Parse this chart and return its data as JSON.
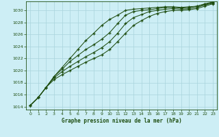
{
  "title": "Graphe pression niveau de la mer (hPa)",
  "background_color": "#cdeef5",
  "grid_color": "#a8d4dc",
  "line_color": "#1e4d10",
  "xlim": [
    -0.5,
    23.5
  ],
  "ylim": [
    1013.5,
    1031.5
  ],
  "yticks": [
    1014,
    1016,
    1018,
    1020,
    1022,
    1024,
    1026,
    1028,
    1030
  ],
  "xticks": [
    0,
    1,
    2,
    3,
    4,
    5,
    6,
    7,
    8,
    9,
    10,
    11,
    12,
    13,
    14,
    15,
    16,
    17,
    18,
    19,
    20,
    21,
    22,
    23
  ],
  "series": [
    [
      1014.2,
      1015.5,
      1017.2,
      1019.0,
      1020.5,
      1022.0,
      1023.5,
      1025.0,
      1026.2,
      1027.5,
      1028.5,
      1029.2,
      1030.0,
      1030.2,
      1030.3,
      1030.4,
      1030.5,
      1030.6,
      1030.6,
      1030.5,
      1030.6,
      1030.7,
      1031.1,
      1031.4
    ],
    [
      1014.2,
      1015.5,
      1017.2,
      1019.0,
      1020.2,
      1021.5,
      1022.5,
      1023.5,
      1024.3,
      1025.2,
      1026.3,
      1027.8,
      1029.2,
      1029.8,
      1030.0,
      1030.1,
      1030.3,
      1030.5,
      1030.5,
      1030.4,
      1030.5,
      1030.7,
      1031.0,
      1031.3
    ],
    [
      1014.2,
      1015.5,
      1017.2,
      1018.8,
      1019.8,
      1020.7,
      1021.5,
      1022.3,
      1023.0,
      1023.8,
      1024.8,
      1026.2,
      1027.8,
      1028.8,
      1029.3,
      1029.8,
      1030.0,
      1030.2,
      1030.3,
      1030.2,
      1030.3,
      1030.5,
      1030.9,
      1031.2
    ],
    [
      1014.2,
      1015.5,
      1017.2,
      1018.5,
      1019.3,
      1020.0,
      1020.7,
      1021.4,
      1022.0,
      1022.6,
      1023.5,
      1024.8,
      1026.2,
      1027.5,
      1028.3,
      1029.0,
      1029.5,
      1029.8,
      1030.0,
      1030.0,
      1030.1,
      1030.3,
      1030.7,
      1031.1
    ]
  ]
}
